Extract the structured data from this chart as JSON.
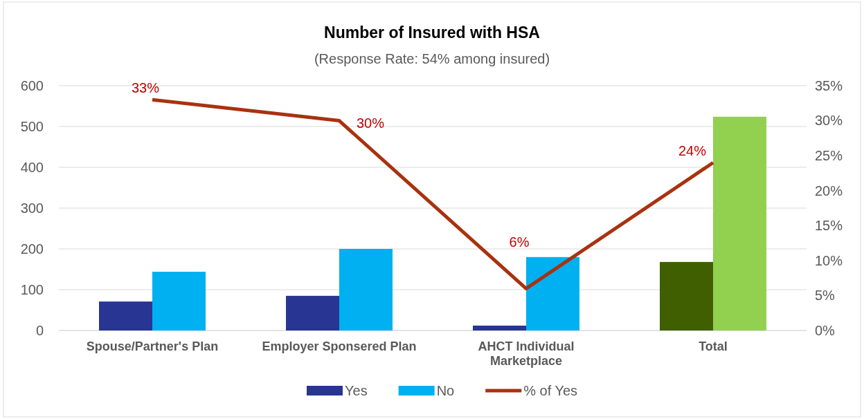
{
  "chart_data": {
    "type": "bar",
    "title": "Number of Insured with HSA",
    "subtitle": "(Response Rate: 54% among insured)",
    "categories": [
      "Spouse/Partner's Plan",
      "Employer Sponsered Plan",
      "AHCT Individual Marketplace",
      "Total"
    ],
    "series": [
      {
        "name": "Yes",
        "color": "#283593",
        "colors": [
          "#283593",
          "#283593",
          "#283593",
          "#3f5f00"
        ],
        "values": [
          71,
          85,
          12,
          168
        ]
      },
      {
        "name": "No",
        "color": "#00b0f0",
        "colors": [
          "#00b0f0",
          "#00b0f0",
          "#00b0f0",
          "#92d050"
        ],
        "values": [
          144,
          200,
          180,
          524
        ]
      },
      {
        "name": "% of Yes",
        "type": "line",
        "axis": "y2",
        "color": "#a83210",
        "values": [
          33,
          30,
          6,
          24
        ],
        "value_labels": [
          "33%",
          "30%",
          "6%",
          "24%"
        ]
      }
    ],
    "ylim": [
      0,
      600
    ],
    "yticks": [
      0,
      100,
      200,
      300,
      400,
      500,
      600
    ],
    "y2lim": [
      0,
      35
    ],
    "y2ticks": [
      {
        "value": 0,
        "label": "0%"
      },
      {
        "value": 5,
        "label": "5%"
      },
      {
        "value": 10,
        "label": "10%"
      },
      {
        "value": 15,
        "label": "15%"
      },
      {
        "value": 20,
        "label": "20%"
      },
      {
        "value": 25,
        "label": "25%"
      },
      {
        "value": 30,
        "label": "30%"
      },
      {
        "value": 35,
        "label": "35%"
      }
    ],
    "grid": "y",
    "legend": "bottom",
    "marker": "none",
    "line_style": "solid"
  }
}
